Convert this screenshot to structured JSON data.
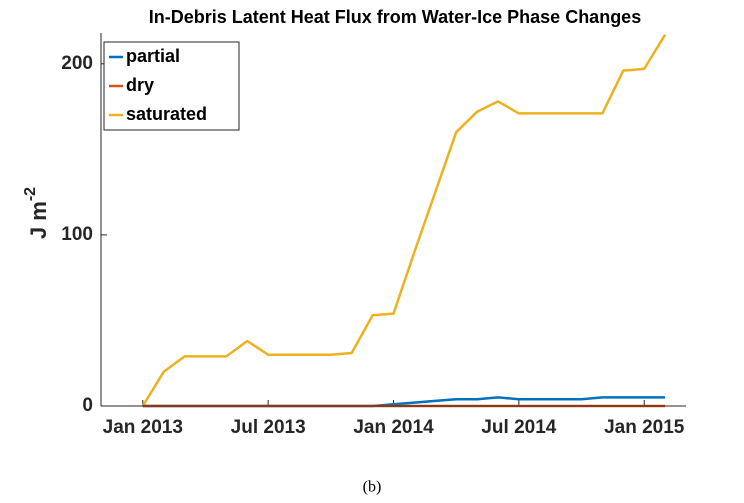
{
  "chart_data": {
    "type": "line",
    "title": "In-Debris Latent Heat Flux from Water-Ice Phase Changes",
    "ylabel": "J m",
    "ylabel_superscript": "-2",
    "caption": "(b)",
    "x": [
      "2013-01",
      "2013-02",
      "2013-03",
      "2013-04",
      "2013-05",
      "2013-06",
      "2013-07",
      "2013-08",
      "2013-09",
      "2013-10",
      "2013-11",
      "2013-12",
      "2014-01",
      "2014-02",
      "2014-03",
      "2014-04",
      "2014-05",
      "2014-06",
      "2014-07",
      "2014-08",
      "2014-09",
      "2014-10",
      "2014-11",
      "2014-12",
      "2015-01",
      "2015-02"
    ],
    "series": [
      {
        "name": "partial",
        "color": "#0072bd",
        "values": [
          0,
          0,
          0,
          0,
          0,
          0,
          0,
          0,
          0,
          0,
          0,
          0,
          1,
          2,
          3,
          4,
          4,
          5,
          4,
          4,
          4,
          4,
          5,
          5,
          5,
          5
        ]
      },
      {
        "name": "dry",
        "color": "#d95319",
        "values": [
          0,
          0,
          0,
          0,
          0,
          0,
          0,
          0,
          0,
          0,
          0,
          0,
          0,
          0,
          0,
          0,
          0,
          0,
          0,
          0,
          0,
          0,
          0,
          0,
          0,
          0
        ]
      },
      {
        "name": "saturated",
        "color": "#edb120",
        "values": [
          0,
          20,
          29,
          29,
          29,
          38,
          30,
          30,
          30,
          30,
          31,
          53,
          54,
          90,
          125,
          160,
          172,
          178,
          171,
          171,
          171,
          171,
          171,
          196,
          197,
          217
        ]
      }
    ],
    "xlim": [
      "2012-11",
      "2015-03"
    ],
    "xticks": [
      {
        "value": "2013-01",
        "label": "Jan 2013"
      },
      {
        "value": "2013-07",
        "label": "Jul 2013"
      },
      {
        "value": "2014-01",
        "label": "Jan 2014"
      },
      {
        "value": "2014-07",
        "label": "Jul 2014"
      },
      {
        "value": "2015-01",
        "label": "Jan 2015"
      }
    ],
    "ylim": [
      0,
      218
    ],
    "yticks": [
      0,
      100,
      200
    ],
    "legend": "upper left"
  }
}
